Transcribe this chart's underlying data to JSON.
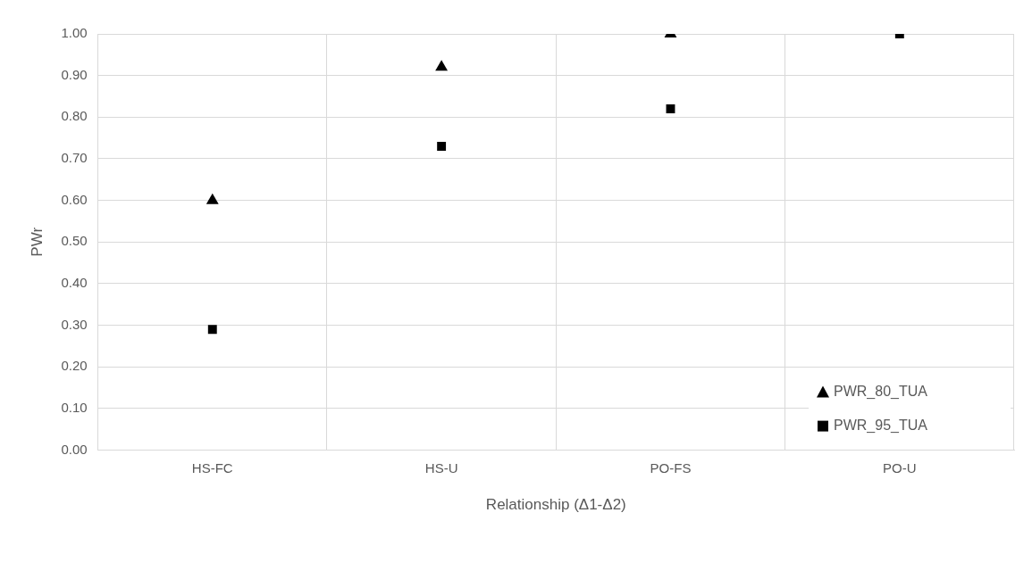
{
  "chart_data": {
    "type": "scatter",
    "xlabel": "Relationship (Δ1-Δ2)",
    "ylabel": "PWr",
    "categories": [
      "HS-FC",
      "HS-U",
      "PO-FS",
      "PO-U"
    ],
    "series": [
      {
        "name": "PWR_80_TUA",
        "color": "#000000",
        "marker": "triangle",
        "values": [
          0.6,
          0.92,
          1.0,
          null
        ]
      },
      {
        "name": "PWR_95_TUA",
        "color": "#000000",
        "marker": "square",
        "values": [
          0.29,
          0.73,
          0.82,
          1.0
        ]
      }
    ],
    "ylim": [
      0,
      1
    ],
    "yticks": [
      {
        "value": 0,
        "label": "0.00"
      },
      {
        "value": 0.1,
        "label": "0.10"
      },
      {
        "value": 0.2,
        "label": "0.20"
      },
      {
        "value": 0.3,
        "label": "0.30"
      },
      {
        "value": 0.4,
        "label": "0.40"
      },
      {
        "value": 0.5,
        "label": "0.50"
      },
      {
        "value": 0.6,
        "label": "0.60"
      },
      {
        "value": 0.7,
        "label": "0.70"
      },
      {
        "value": 0.8,
        "label": "0.80"
      },
      {
        "value": 0.9,
        "label": "0.90"
      },
      {
        "value": 1,
        "label": "1.00"
      }
    ],
    "grid": true,
    "legend": "bottom right"
  }
}
